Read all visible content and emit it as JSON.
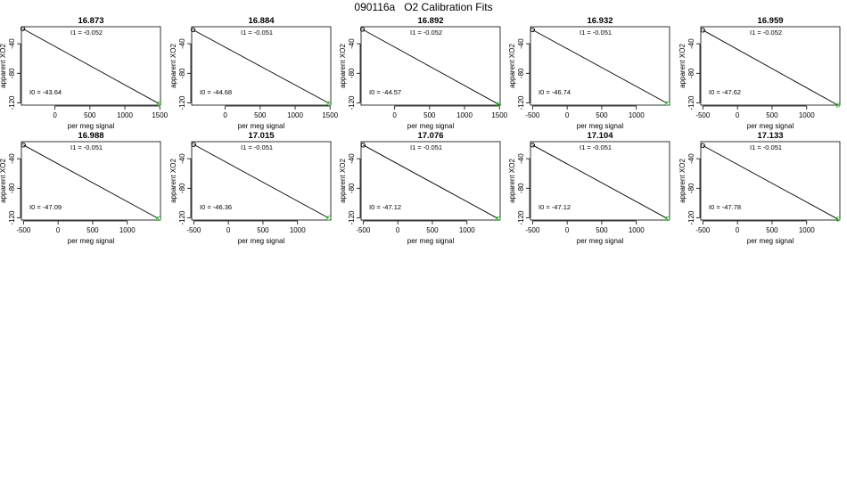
{
  "page": {
    "title": "090116a   O2 Calibration Fits"
  },
  "colors": {
    "fit_line": "#000000",
    "point_stroke": "#000000",
    "point_fill": "#22cc22",
    "axis": "#000000"
  },
  "chart_data": [
    {
      "type": "line",
      "title": "16.873",
      "xlabel": "per meg signal",
      "ylabel": "apparent XO2",
      "xticks": [
        0,
        500,
        1000,
        1500
      ],
      "yticks": [
        -40,
        -80,
        -120
      ],
      "xlim": [
        -480,
        1510
      ],
      "ylim": [
        -123,
        -17
      ],
      "grid": false,
      "intercept_label": "I0 =  -43.64",
      "slope_label": "I1 =  -0.052",
      "points": [
        {
          "x": -460,
          "y": -19.7,
          "color": "black"
        },
        {
          "x": 1490,
          "y": -121.1,
          "color": "green"
        }
      ]
    },
    {
      "type": "line",
      "title": "16.884",
      "xlabel": "per meg signal",
      "ylabel": "apparent XO2",
      "xticks": [
        0,
        500,
        1000,
        1500
      ],
      "yticks": [
        -40,
        -80,
        -120
      ],
      "xlim": [
        -480,
        1510
      ],
      "ylim": [
        -123,
        -17
      ],
      "grid": false,
      "intercept_label": "I0 =  -44.68",
      "slope_label": "I1 =  -0.051",
      "points": [
        {
          "x": -460,
          "y": -21.2,
          "color": "black"
        },
        {
          "x": 1490,
          "y": -120.7,
          "color": "green"
        }
      ]
    },
    {
      "type": "line",
      "title": "16.892",
      "xlabel": "per meg signal",
      "ylabel": "apparent XO2",
      "xticks": [
        0,
        500,
        1000,
        1500
      ],
      "yticks": [
        -40,
        -80,
        -120
      ],
      "xlim": [
        -480,
        1510
      ],
      "ylim": [
        -123,
        -17
      ],
      "grid": false,
      "intercept_label": "I0 =  -44.57",
      "slope_label": "I1 =  -0.052",
      "points": [
        {
          "x": -460,
          "y": -20.6,
          "color": "black"
        },
        {
          "x": 1490,
          "y": -122.0,
          "color": "green"
        }
      ]
    },
    {
      "type": "line",
      "title": "16.932",
      "xlabel": "per meg signal",
      "ylabel": "apparent XO2",
      "xticks": [
        -500,
        0,
        500,
        1000
      ],
      "yticks": [
        -40,
        -80,
        -120
      ],
      "xlim": [
        -530,
        1480
      ],
      "ylim": [
        -123,
        -17
      ],
      "grid": false,
      "intercept_label": "I0 =  -46.74",
      "slope_label": "I1 =  -0.051",
      "points": [
        {
          "x": -500,
          "y": -21.2,
          "color": "black"
        },
        {
          "x": 1450,
          "y": -120.7,
          "color": "green"
        }
      ]
    },
    {
      "type": "line",
      "title": "16.959",
      "xlabel": "per meg signal",
      "ylabel": "apparent XO2",
      "xticks": [
        -500,
        0,
        500,
        1000
      ],
      "yticks": [
        -40,
        -80,
        -120
      ],
      "xlim": [
        -530,
        1480
      ],
      "ylim": [
        -123,
        -17
      ],
      "grid": false,
      "intercept_label": "I0 =  -47.62",
      "slope_label": "I1 =  -0.052",
      "points": [
        {
          "x": -500,
          "y": -21.6,
          "color": "black"
        },
        {
          "x": 1450,
          "y": -123.0,
          "color": "green"
        }
      ]
    },
    {
      "type": "line",
      "title": "16.988",
      "xlabel": "per meg signal",
      "ylabel": "apparent XO2",
      "xticks": [
        -500,
        0,
        500,
        1000
      ],
      "yticks": [
        -40,
        -80,
        -120
      ],
      "xlim": [
        -530,
        1480
      ],
      "ylim": [
        -123,
        -17
      ],
      "grid": false,
      "intercept_label": "I0 =  -47.09",
      "slope_label": "I1 =  -0.051",
      "points": [
        {
          "x": -500,
          "y": -21.6,
          "color": "black"
        },
        {
          "x": 1450,
          "y": -121.0,
          "color": "green"
        }
      ]
    },
    {
      "type": "line",
      "title": "17.015",
      "xlabel": "per meg signal",
      "ylabel": "apparent XO2",
      "xticks": [
        -500,
        0,
        500,
        1000
      ],
      "yticks": [
        -40,
        -80,
        -120
      ],
      "xlim": [
        -530,
        1480
      ],
      "ylim": [
        -123,
        -17
      ],
      "grid": false,
      "intercept_label": "I0 =  -46.36",
      "slope_label": "I1 =  -0.051",
      "points": [
        {
          "x": -500,
          "y": -20.9,
          "color": "black"
        },
        {
          "x": 1450,
          "y": -120.3,
          "color": "green"
        }
      ]
    },
    {
      "type": "line",
      "title": "17.076",
      "xlabel": "per meg signal",
      "ylabel": "apparent XO2",
      "xticks": [
        -500,
        0,
        500,
        1000
      ],
      "yticks": [
        -40,
        -80,
        -120
      ],
      "xlim": [
        -530,
        1480
      ],
      "ylim": [
        -123,
        -17
      ],
      "grid": false,
      "intercept_label": "I0 =  -47.12",
      "slope_label": "I1 =  -0.051",
      "points": [
        {
          "x": -500,
          "y": -21.6,
          "color": "black"
        },
        {
          "x": 1450,
          "y": -121.1,
          "color": "green"
        }
      ]
    },
    {
      "type": "line",
      "title": "17.104",
      "xlabel": "per meg signal",
      "ylabel": "apparent XO2",
      "xticks": [
        -500,
        0,
        500,
        1000
      ],
      "yticks": [
        -40,
        -80,
        -120
      ],
      "xlim": [
        -530,
        1480
      ],
      "ylim": [
        -123,
        -17
      ],
      "grid": false,
      "intercept_label": "I0 =  -47.12",
      "slope_label": "I1 =  -0.051",
      "points": [
        {
          "x": -500,
          "y": -21.6,
          "color": "black"
        },
        {
          "x": 1450,
          "y": -121.1,
          "color": "green"
        }
      ]
    },
    {
      "type": "line",
      "title": "17.133",
      "xlabel": "per meg signal",
      "ylabel": "apparent XO2",
      "xticks": [
        -500,
        0,
        500,
        1000
      ],
      "yticks": [
        -40,
        -80,
        -120
      ],
      "xlim": [
        -530,
        1480
      ],
      "ylim": [
        -123,
        -17
      ],
      "grid": false,
      "intercept_label": "I0 =  -47.78",
      "slope_label": "I1 =  -0.051",
      "points": [
        {
          "x": -500,
          "y": -22.3,
          "color": "black"
        },
        {
          "x": 1450,
          "y": -121.7,
          "color": "green"
        }
      ]
    }
  ]
}
